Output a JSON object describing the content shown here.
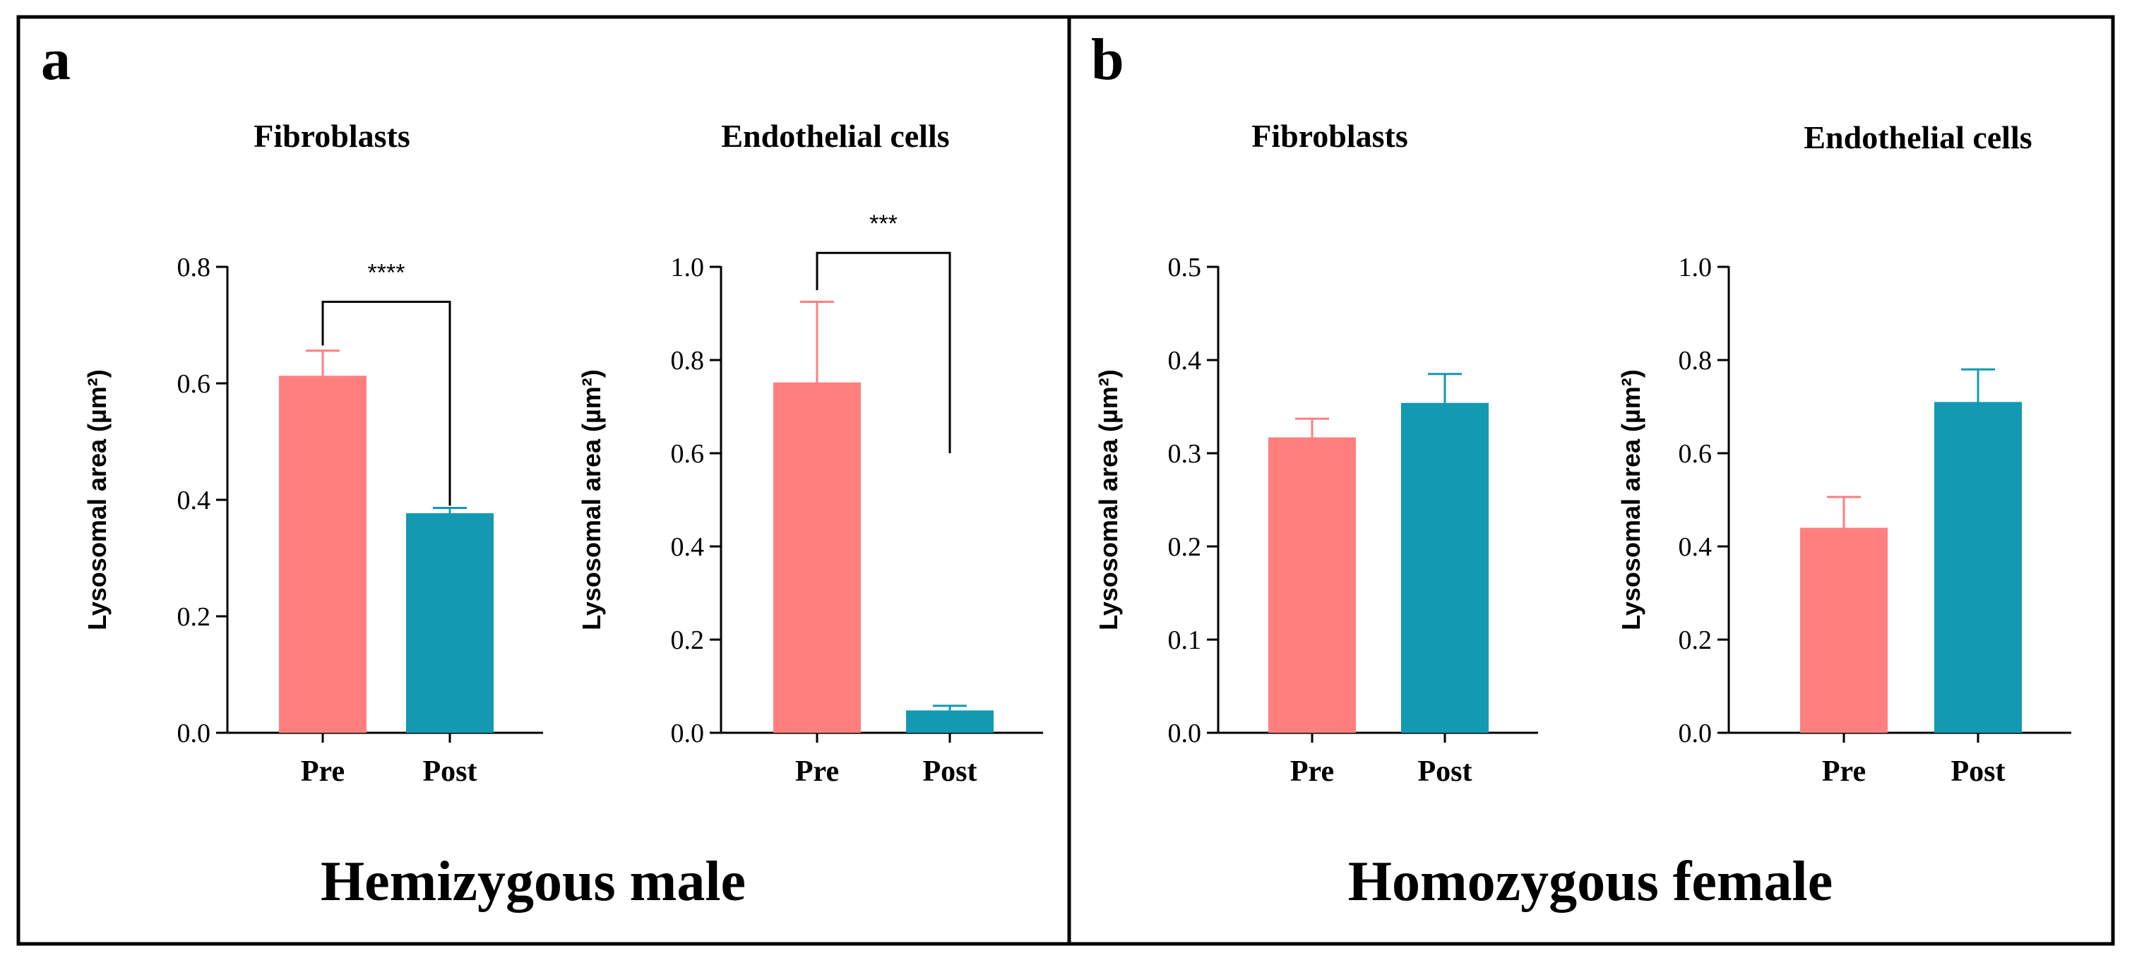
{
  "panels": [
    {
      "letter": "a",
      "group_title": "Hemizygous male"
    },
    {
      "letter": "b",
      "group_title": "Homozygous female"
    }
  ],
  "colors": {
    "pre": "#FF7F7F",
    "post": "#1399B2"
  },
  "chart_data": [
    {
      "type": "bar",
      "title": "Fibroblasts",
      "ylabel": "Lysosomal area (µm²)",
      "categories": [
        "Pre",
        "Post"
      ],
      "values": [
        0.613,
        0.377
      ],
      "errors": [
        0.043,
        0.009
      ],
      "ylim": [
        0,
        0.8
      ],
      "yticks": [
        0.0,
        0.2,
        0.4,
        0.6,
        0.8
      ],
      "tick_labels": [
        "0.0",
        "0.2",
        "0.4",
        "0.6",
        "0.8"
      ],
      "significance": {
        "label": "****",
        "bracket_y": 0.74,
        "left_y": 0.665,
        "right_y": 0.39
      }
    },
    {
      "type": "bar",
      "title": "Endothelial cells",
      "ylabel": "Lysosomal area (µm²)",
      "categories": [
        "Pre",
        "Post"
      ],
      "values": [
        0.752,
        0.048
      ],
      "errors": [
        0.173,
        0.01
      ],
      "ylim": [
        0,
        1.0
      ],
      "yticks": [
        0.0,
        0.2,
        0.4,
        0.6,
        0.8,
        1.0
      ],
      "tick_labels": [
        "0.0",
        "0.2",
        "0.4",
        "0.6",
        "0.8",
        "1.0"
      ],
      "significance": {
        "label": "***",
        "bracket_y": 1.03,
        "left_y": 0.95,
        "right_y": 0.6
      }
    },
    {
      "type": "bar",
      "title": "Fibroblasts",
      "ylabel": "Lysosomal area (µm²)",
      "categories": [
        "Pre",
        "Post"
      ],
      "values": [
        0.317,
        0.354
      ],
      "errors": [
        0.02,
        0.031
      ],
      "ylim": [
        0,
        0.5
      ],
      "yticks": [
        0.0,
        0.1,
        0.2,
        0.3,
        0.4,
        0.5
      ],
      "tick_labels": [
        "0.0",
        "0.1",
        "0.2",
        "0.3",
        "0.4",
        "0.5"
      ],
      "significance": null
    },
    {
      "type": "bar",
      "title": "Endothelial cells",
      "ylabel": "Lysosomal area (µm²)",
      "categories": [
        "Pre",
        "Post"
      ],
      "values": [
        0.44,
        0.71
      ],
      "errors": [
        0.066,
        0.07
      ],
      "ylim": [
        0,
        1.0
      ],
      "yticks": [
        0.0,
        0.2,
        0.4,
        0.6,
        0.8,
        1.0
      ],
      "tick_labels": [
        "0.0",
        "0.2",
        "0.4",
        "0.6",
        "0.8",
        "1.0"
      ],
      "significance": null
    }
  ]
}
